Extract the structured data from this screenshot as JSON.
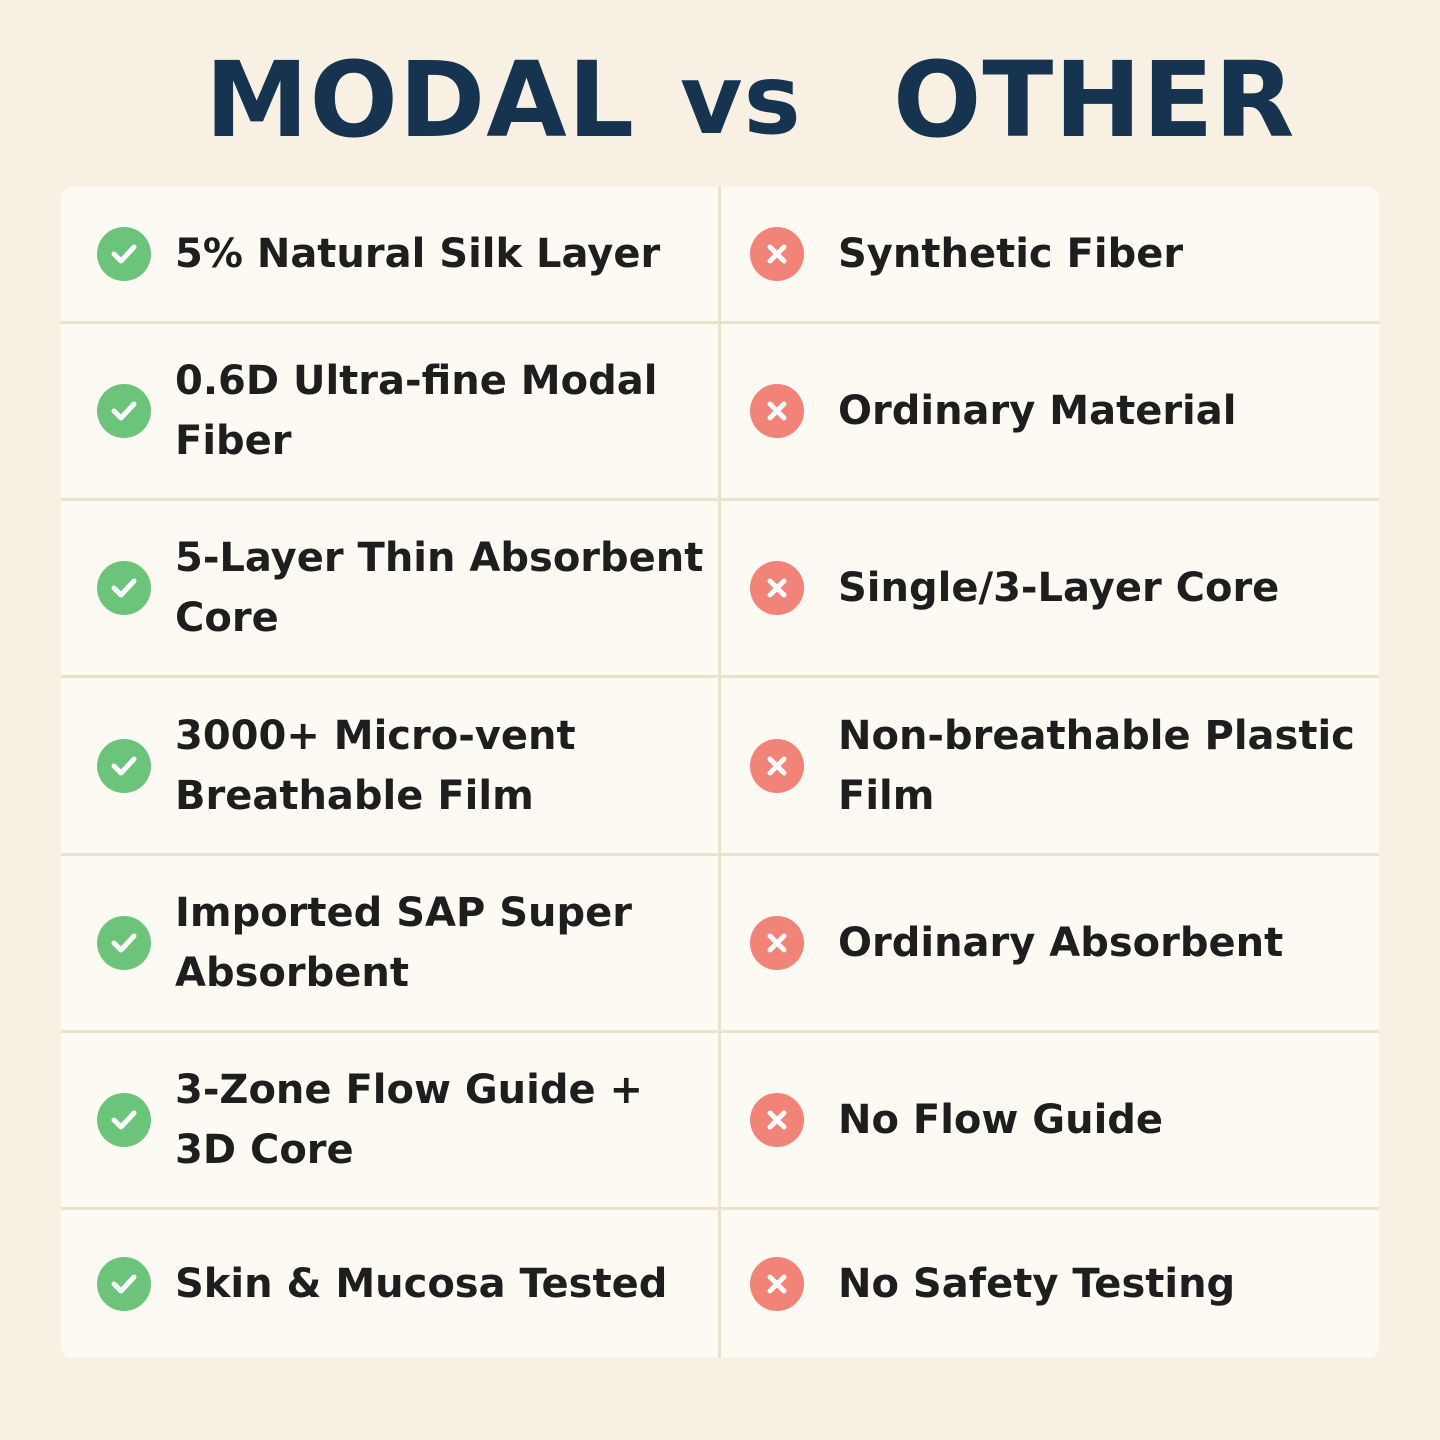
{
  "title": {
    "left": "MODAL",
    "vs": "vs",
    "right": "OTHER"
  },
  "colors": {
    "title": "#163350",
    "check": "#6cc47a",
    "cross": "#f18378",
    "background": "#f8f0e3",
    "card": "#fdfaf3"
  },
  "rows": [
    {
      "modal": "5% Natural Silk Layer",
      "other": "Synthetic Fiber"
    },
    {
      "modal": "0.6D Ultra-fine Modal Fiber",
      "other": "Ordinary Material"
    },
    {
      "modal": "5-Layer Thin Absorbent Core",
      "other": "Single/3-Layer Core"
    },
    {
      "modal": "3000+ Micro-vent Breathable Film",
      "other": "Non-breathable Plastic Film"
    },
    {
      "modal": "Imported SAP Super Absorbent",
      "other": "Ordinary Absorbent"
    },
    {
      "modal": "3-Zone Flow Guide + 3D Core",
      "other": "No Flow Guide"
    },
    {
      "modal": "Skin & Mucosa Tested",
      "other": "No Safety Testing"
    }
  ]
}
